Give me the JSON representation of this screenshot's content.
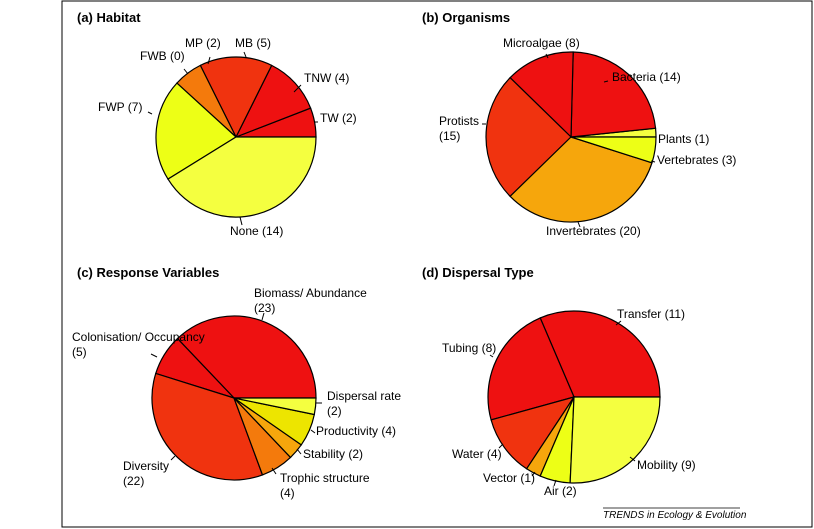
{
  "colors": {
    "red": "#ee1111",
    "red_orange": "#f0330f",
    "orange_red": "#fa5a0a",
    "orange": "#f47a0c",
    "amber": "#f6a60c",
    "yellow_orange": "#ede500",
    "lime_yellow": "#edff16",
    "pale_yellow": "#f4ff40",
    "outline": "#000000"
  },
  "footer": "TRENDS in Ecology & Evolution",
  "chart_data": [
    {
      "type": "pie",
      "title": "(a) Habitat",
      "slices": [
        {
          "label": "TW (2)",
          "value": 2,
          "color": "#ee1111"
        },
        {
          "label": "TNW (4)",
          "value": 4,
          "color": "#ee1111"
        },
        {
          "label": "MB (5)",
          "value": 5,
          "color": "#f0330f"
        },
        {
          "label": "MP (2)",
          "value": 2,
          "color": "#f47a0c"
        },
        {
          "label": "FWB (0)",
          "value": 0,
          "color": "#f6a60c"
        },
        {
          "label": "FWP (7)",
          "value": 7,
          "color": "#edff16"
        },
        {
          "label": "None (14)",
          "value": 14,
          "color": "#f4ff40"
        }
      ]
    },
    {
      "type": "pie",
      "title": "(b) Organisms",
      "slices": [
        {
          "label": "Plants (1)",
          "value": 1,
          "color": "#f4ff40"
        },
        {
          "label": "Bacteria (14)",
          "value": 14,
          "color": "#ee1111"
        },
        {
          "label": "Microalgae (8)",
          "value": 8,
          "color": "#ee1111"
        },
        {
          "label": "Protists (15)",
          "value": 15,
          "color": "#f0330f"
        },
        {
          "label": "Invertebrates (20)",
          "value": 20,
          "color": "#f6a60c"
        },
        {
          "label": "Vertebrates (3)",
          "value": 3,
          "color": "#edff16"
        }
      ]
    },
    {
      "type": "pie",
      "title": "(c) Response Variables",
      "slices": [
        {
          "label": "Biomass/ Abundance (23)",
          "value": 23,
          "color": "#ee1111"
        },
        {
          "label": "Colonisation/ Occupancy (5)",
          "value": 5,
          "color": "#ee1111"
        },
        {
          "label": "Diversity (22)",
          "value": 22,
          "color": "#f0330f"
        },
        {
          "label": "Trophic structure (4)",
          "value": 4,
          "color": "#f47a0c"
        },
        {
          "label": "Stability (2)",
          "value": 2,
          "color": "#f6a60c"
        },
        {
          "label": "Productivity (4)",
          "value": 4,
          "color": "#ede500"
        },
        {
          "label": "Dispersal rate (2)",
          "value": 2,
          "color": "#f4ff40"
        }
      ]
    },
    {
      "type": "pie",
      "title": "(d) Dispersal Type",
      "slices": [
        {
          "label": "Transfer (11)",
          "value": 11,
          "color": "#ee1111"
        },
        {
          "label": "Tubing (8)",
          "value": 8,
          "color": "#ee1111"
        },
        {
          "label": "Water (4)",
          "value": 4,
          "color": "#f0330f"
        },
        {
          "label": "Vector (1)",
          "value": 1,
          "color": "#f6a60c"
        },
        {
          "label": "Air (2)",
          "value": 2,
          "color": "#edff16"
        },
        {
          "label": "Mobility (9)",
          "value": 9,
          "color": "#f4ff40"
        }
      ]
    }
  ]
}
